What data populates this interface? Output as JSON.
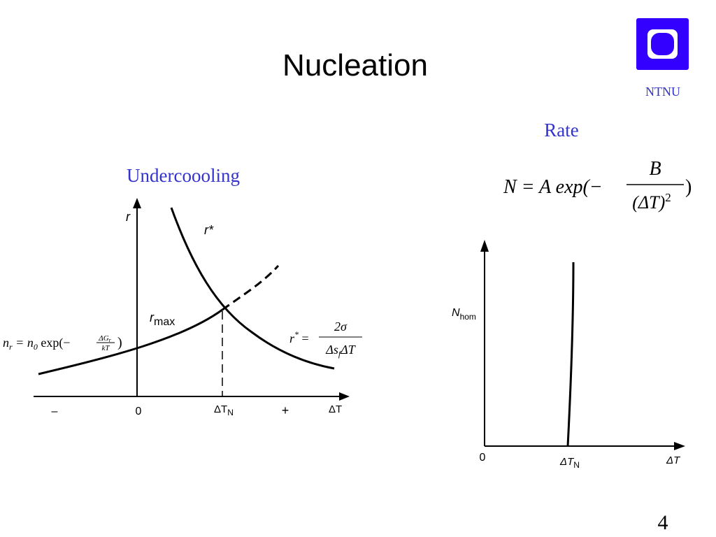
{
  "header": {
    "title": "Nucleation",
    "logo_text": "NTNU"
  },
  "left": {
    "heading": "Undercoooling",
    "axis_r": "r",
    "curve_rstar": "r*",
    "curve_rmax": {
      "main": "r",
      "sub": "max"
    },
    "x_labels": {
      "minus": "–",
      "zero": "0",
      "delta_tn": {
        "main": "ΔT",
        "sub": "N"
      },
      "plus": "+",
      "delta_t": "ΔT"
    },
    "formula_nr": {
      "lhs": "n",
      "lhs_sub": "r",
      "eq": " = n",
      "eq_sub": "0",
      "exp": " exp(−",
      "num": "ΔG",
      "num_sub": "r",
      "den": "kT",
      "close": ")"
    },
    "formula_rstar": {
      "lhs": "r",
      "lhs_sup": "*",
      "eq": " =",
      "num": "2σ",
      "den": "Δs",
      "den_sub": "f",
      "den_rest": "ΔT"
    }
  },
  "right": {
    "heading": "Rate",
    "formula": {
      "lhs": "N = A exp(−",
      "num": "B",
      "den": "(ΔT)",
      "den_sup": "2",
      "close": ")"
    },
    "axis_n": {
      "main": "N",
      "sub": "hom"
    },
    "x_labels": {
      "zero": "0",
      "delta_tn": {
        "main": "ΔT",
        "sub": "N"
      },
      "delta_t": "ΔT"
    }
  },
  "footer": {
    "page_number": "4"
  }
}
